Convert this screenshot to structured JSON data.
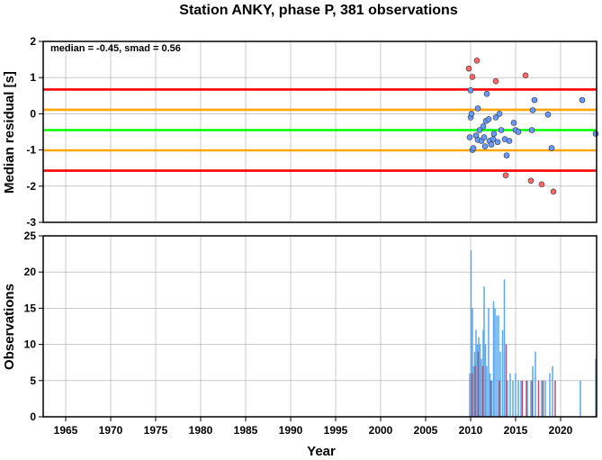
{
  "chart_data": [
    {
      "type": "scatter",
      "title": "Station ANKY, phase P, 381 observations",
      "ylabel": "Median residual [s]",
      "xlabel": "",
      "xlim": [
        1962.5,
        2024
      ],
      "ylim": [
        -3,
        2
      ],
      "yticks": [
        2,
        1,
        0,
        -1,
        -2,
        -3
      ],
      "annotation": "median = -0.45, smad = 0.56",
      "grid": true,
      "reference_lines": [
        {
          "value": 0.67,
          "color": "#ff0000"
        },
        {
          "value": 0.11,
          "color": "#ffa500"
        },
        {
          "value": -0.45,
          "color": "#00ff00"
        },
        {
          "value": -1.01,
          "color": "#ffa500"
        },
        {
          "value": -1.57,
          "color": "#ff0000"
        }
      ],
      "series": [
        {
          "color": "#ff6666",
          "points": [
            [
              2009.8,
              1.25
            ],
            [
              2010.2,
              1.02
            ],
            [
              2010.7,
              1.47
            ],
            [
              2012.8,
              0.9
            ],
            [
              2016.1,
              1.06
            ],
            [
              2013.9,
              -1.7
            ],
            [
              2016.7,
              -1.85
            ],
            [
              2017.9,
              -1.95
            ],
            [
              2019.2,
              -2.15
            ]
          ]
        },
        {
          "color": "#6699ff",
          "points": [
            [
              2010.0,
              0.65
            ],
            [
              2010.0,
              -0.1
            ],
            [
              2010.1,
              0.0
            ],
            [
              2009.9,
              -0.65
            ],
            [
              2010.2,
              -1.0
            ],
            [
              2010.3,
              -0.95
            ],
            [
              2010.6,
              -0.6
            ],
            [
              2010.8,
              -0.72
            ],
            [
              2010.8,
              0.15
            ],
            [
              2011.0,
              -0.45
            ],
            [
              2011.2,
              -0.75
            ],
            [
              2011.4,
              -0.35
            ],
            [
              2011.5,
              -0.65
            ],
            [
              2011.6,
              -0.9
            ],
            [
              2011.7,
              -0.2
            ],
            [
              2011.8,
              0.55
            ],
            [
              2012.0,
              -0.15
            ],
            [
              2012.1,
              -0.75
            ],
            [
              2012.3,
              -0.85
            ],
            [
              2012.5,
              -0.7
            ],
            [
              2012.6,
              -0.55
            ],
            [
              2012.8,
              -0.1
            ],
            [
              2013.0,
              -0.78
            ],
            [
              2013.2,
              0.0
            ],
            [
              2013.4,
              -0.45
            ],
            [
              2013.8,
              -0.7
            ],
            [
              2014.0,
              -1.15
            ],
            [
              2014.3,
              -0.75
            ],
            [
              2014.8,
              -0.25
            ],
            [
              2015.0,
              -0.45
            ],
            [
              2015.3,
              -0.5
            ],
            [
              2016.9,
              0.1
            ],
            [
              2017.1,
              0.38
            ],
            [
              2016.8,
              -0.45
            ],
            [
              2018.6,
              -0.02
            ],
            [
              2019.0,
              -0.95
            ],
            [
              2022.4,
              0.38
            ],
            [
              2023.9,
              -0.55
            ]
          ]
        }
      ]
    },
    {
      "type": "bar",
      "title": "",
      "ylabel": "Observations",
      "xlabel": "Year",
      "xlim": [
        1962.5,
        2024
      ],
      "ylim": [
        0,
        25
      ],
      "yticks": [
        0,
        5,
        10,
        15,
        20,
        25
      ],
      "xticks": [
        1965,
        1970,
        1975,
        1980,
        1985,
        1990,
        1995,
        2000,
        2005,
        2010,
        2015,
        2020
      ],
      "grid": true,
      "series": [
        {
          "color": "#5aa9ee",
          "points": [
            [
              2009.9,
              6
            ],
            [
              2010.05,
              23
            ],
            [
              2010.2,
              15
            ],
            [
              2010.3,
              7
            ],
            [
              2010.45,
              9
            ],
            [
              2010.6,
              12
            ],
            [
              2010.75,
              10
            ],
            [
              2010.9,
              11
            ],
            [
              2011.05,
              10
            ],
            [
              2011.2,
              8
            ],
            [
              2011.4,
              12
            ],
            [
              2011.5,
              18
            ],
            [
              2011.65,
              10
            ],
            [
              2011.8,
              7
            ],
            [
              2012.0,
              15
            ],
            [
              2012.15,
              6
            ],
            [
              2012.35,
              5
            ],
            [
              2012.55,
              16
            ],
            [
              2012.7,
              15
            ],
            [
              2012.9,
              14
            ],
            [
              2013.1,
              14
            ],
            [
              2013.3,
              9
            ],
            [
              2013.55,
              12
            ],
            [
              2013.75,
              19
            ],
            [
              2014.1,
              5
            ],
            [
              2014.4,
              6
            ],
            [
              2014.7,
              5
            ],
            [
              2015.0,
              6
            ],
            [
              2015.3,
              5
            ],
            [
              2015.6,
              5
            ],
            [
              2016.3,
              5
            ],
            [
              2016.7,
              5
            ],
            [
              2016.9,
              7
            ],
            [
              2017.2,
              9
            ],
            [
              2017.9,
              5
            ],
            [
              2018.3,
              5
            ],
            [
              2018.8,
              6
            ],
            [
              2019.1,
              7
            ],
            [
              2022.2,
              5
            ],
            [
              2023.9,
              8
            ]
          ]
        },
        {
          "color": "#b05070",
          "points": [
            [
              2010.15,
              6
            ],
            [
              2010.5,
              7
            ],
            [
              2010.85,
              9
            ],
            [
              2011.35,
              7
            ],
            [
              2012.25,
              5
            ],
            [
              2013.2,
              5
            ],
            [
              2013.95,
              10
            ],
            [
              2015.75,
              5
            ],
            [
              2016.2,
              5
            ],
            [
              2016.85,
              5
            ],
            [
              2017.55,
              5
            ],
            [
              2018.05,
              5
            ],
            [
              2019.4,
              5
            ]
          ]
        }
      ]
    }
  ]
}
